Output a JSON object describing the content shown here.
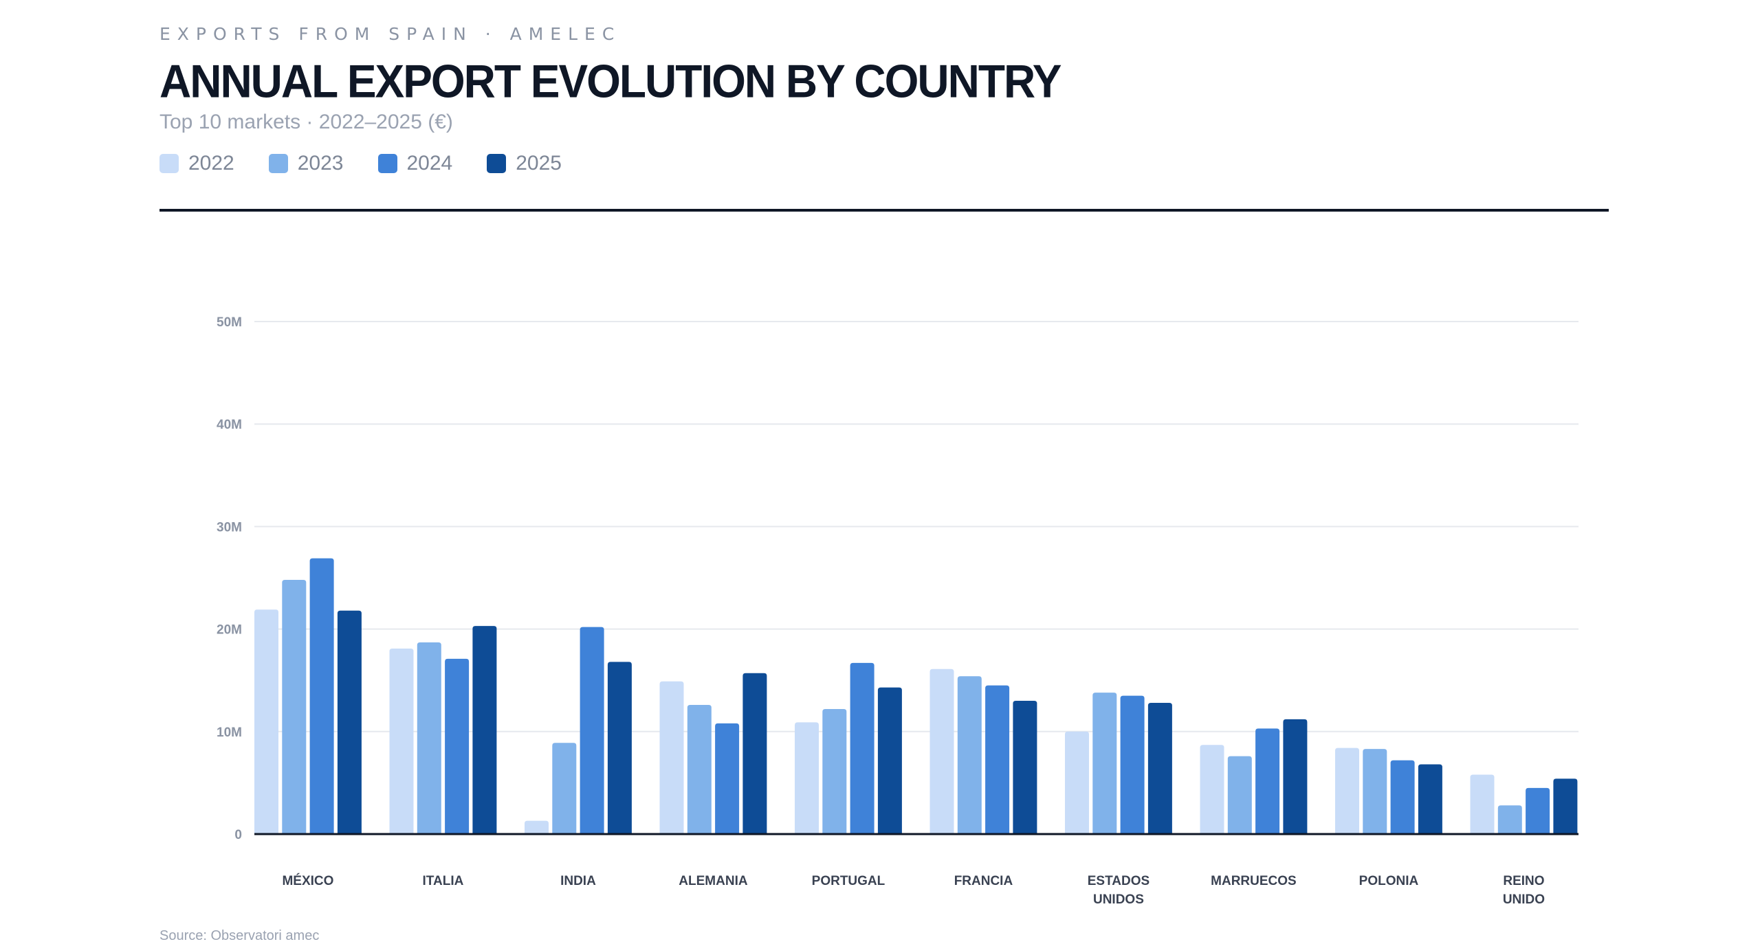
{
  "header": {
    "eyebrow": "EXPORTS FROM SPAIN · AMELEC",
    "title": "ANNUAL EXPORT EVOLUTION BY COUNTRY",
    "subtitle": "Top 10 markets · 2022–2025 (€)"
  },
  "legend": {
    "items": [
      {
        "label": "2022",
        "color": "#c8dcf8"
      },
      {
        "label": "2023",
        "color": "#80b2ea"
      },
      {
        "label": "2024",
        "color": "#3f82d8"
      },
      {
        "label": "2025",
        "color": "#0e4c96"
      }
    ]
  },
  "source": "Source: Observatori amec",
  "chart_data": {
    "type": "bar",
    "title": "ANNUAL EXPORT EVOLUTION BY COUNTRY",
    "subtitle": "Top 10 markets · 2022–2025 (€)",
    "xlabel": "",
    "ylabel": "",
    "ylim": [
      0,
      50000000
    ],
    "yticks": [
      0,
      10000000,
      20000000,
      30000000,
      40000000,
      50000000
    ],
    "ytick_labels": [
      "0",
      "10M",
      "20M",
      "30M",
      "40M",
      "50M"
    ],
    "grid": true,
    "legend_position": "top-left",
    "categories": [
      "MÉXICO",
      "ITALIA",
      "INDIA",
      "ALEMANIA",
      "PORTUGAL",
      "FRANCIA",
      "ESTADOS UNIDOS",
      "MARRUECOS",
      "POLONIA",
      "REINO UNIDO"
    ],
    "series": [
      {
        "name": "2022",
        "color": "#c8dcf8",
        "values": [
          21900000,
          18100000,
          1300000,
          14900000,
          10900000,
          16100000,
          10000000,
          8700000,
          8400000,
          5800000
        ]
      },
      {
        "name": "2023",
        "color": "#80b2ea",
        "values": [
          24800000,
          18700000,
          8900000,
          12600000,
          12200000,
          15400000,
          13800000,
          7600000,
          8300000,
          2800000
        ]
      },
      {
        "name": "2024",
        "color": "#3f82d8",
        "values": [
          26900000,
          17100000,
          20200000,
          10800000,
          16700000,
          14500000,
          13500000,
          10300000,
          7200000,
          4500000
        ]
      },
      {
        "name": "2025",
        "color": "#0e4c96",
        "values": [
          21800000,
          20300000,
          16800000,
          15700000,
          14300000,
          13000000,
          12800000,
          11200000,
          6800000,
          5400000
        ]
      }
    ]
  }
}
